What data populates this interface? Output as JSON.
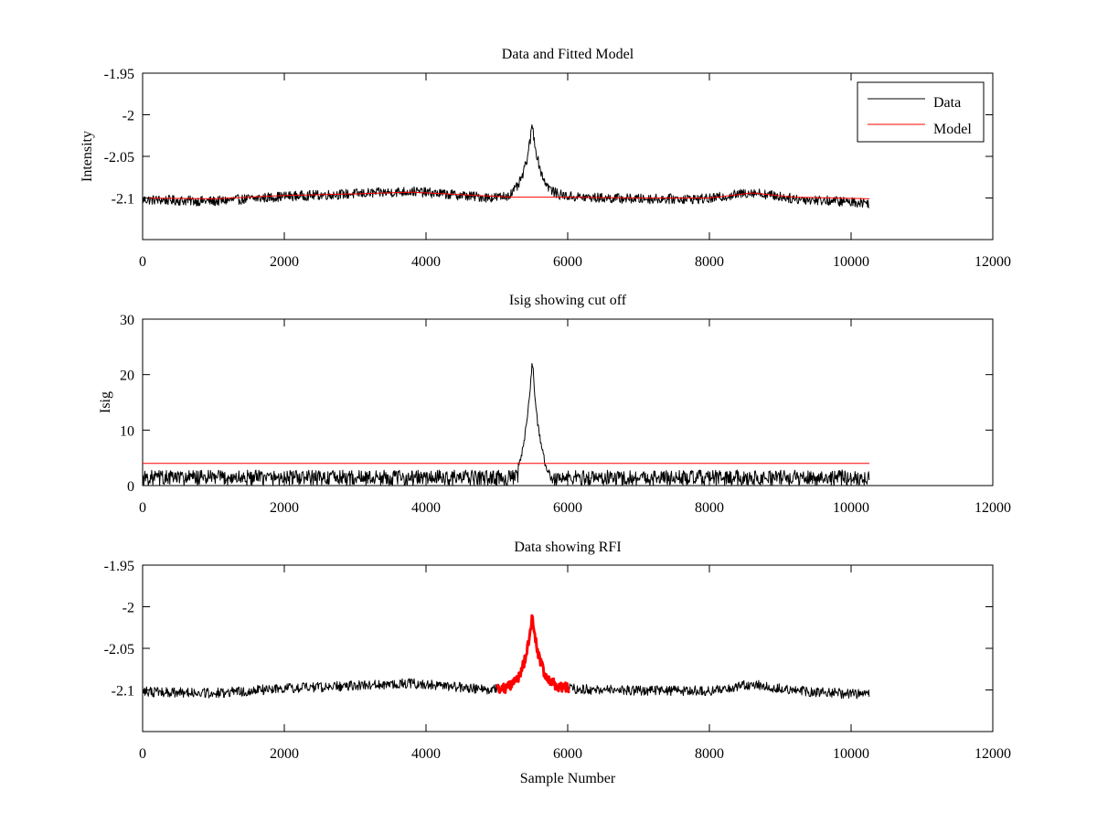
{
  "chart_data": [
    {
      "type": "line",
      "title": "Data and Fitted Model",
      "xlabel": "",
      "ylabel": "Intensity",
      "xlim": [
        0,
        12000
      ],
      "ylim": [
        -2.15,
        -1.95
      ],
      "xticks": [
        0,
        2000,
        4000,
        6000,
        8000,
        10000,
        12000
      ],
      "xtick_labels": [
        "0",
        "2000",
        "4000",
        "6000",
        "8000",
        "10000",
        "12000"
      ],
      "yticks": [
        -1.95,
        -2.0,
        -2.05,
        -2.1
      ],
      "ytick_labels": [
        "-1.95",
        "-2",
        "-2.05",
        "-2.1"
      ],
      "legend_position": "top-right",
      "series": [
        {
          "name": "Data",
          "color": "#000000",
          "kind": "noisy",
          "x_range": [
            0,
            10260
          ],
          "noise": 0.006,
          "baseline": [
            [
              0,
              -2.102
            ],
            [
              1000,
              -2.104
            ],
            [
              2000,
              -2.098
            ],
            [
              3000,
              -2.095
            ],
            [
              3800,
              -2.092
            ],
            [
              4500,
              -2.097
            ],
            [
              5200,
              -2.102
            ],
            [
              5500,
              -2.101
            ],
            [
              6000,
              -2.099
            ],
            [
              7000,
              -2.101
            ],
            [
              8000,
              -2.101
            ],
            [
              8600,
              -2.093
            ],
            [
              9200,
              -2.101
            ],
            [
              10260,
              -2.106
            ]
          ],
          "peak": {
            "center": 5500,
            "height": 0.09,
            "width": 120
          }
        },
        {
          "name": "Model",
          "color": "#ff0000",
          "kind": "line",
          "points": [
            [
              0,
              -2.1
            ],
            [
              1000,
              -2.101
            ],
            [
              2000,
              -2.097
            ],
            [
              3000,
              -2.095
            ],
            [
              3800,
              -2.093
            ],
            [
              4500,
              -2.096
            ],
            [
              5200,
              -2.099
            ],
            [
              6000,
              -2.099
            ],
            [
              7000,
              -2.1
            ],
            [
              8000,
              -2.1
            ],
            [
              8600,
              -2.094
            ],
            [
              9200,
              -2.099
            ],
            [
              10260,
              -2.101
            ]
          ]
        }
      ]
    },
    {
      "type": "line",
      "title": "Isig showing cut off",
      "xlabel": "",
      "ylabel": "Isig",
      "xlim": [
        0,
        12000
      ],
      "ylim": [
        0,
        30
      ],
      "xticks": [
        0,
        2000,
        4000,
        6000,
        8000,
        10000,
        12000
      ],
      "xtick_labels": [
        "0",
        "2000",
        "4000",
        "6000",
        "8000",
        "10000",
        "12000"
      ],
      "yticks": [
        0,
        10,
        20,
        30
      ],
      "ytick_labels": [
        "0",
        "10",
        "20",
        "30"
      ],
      "series": [
        {
          "name": "Isig",
          "color": "#000000",
          "kind": "isig",
          "x_range": [
            0,
            10260
          ],
          "noise_max": 2.8,
          "peak": {
            "center": 5500,
            "height": 24,
            "width": 120,
            "zero_window": [
              5300,
              5800
            ]
          }
        },
        {
          "name": "Cut off",
          "color": "#ff0000",
          "kind": "line",
          "points": [
            [
              0,
              4
            ],
            [
              10260,
              4
            ]
          ]
        }
      ]
    },
    {
      "type": "line",
      "title": "Data showing RFI",
      "xlabel": "Sample Number",
      "ylabel": "",
      "xlim": [
        0,
        12000
      ],
      "ylim": [
        -2.15,
        -1.95
      ],
      "xticks": [
        0,
        2000,
        4000,
        6000,
        8000,
        10000,
        12000
      ],
      "xtick_labels": [
        "0",
        "2000",
        "4000",
        "6000",
        "8000",
        "10000",
        "12000"
      ],
      "yticks": [
        -1.95,
        -2.0,
        -2.05,
        -2.1
      ],
      "ytick_labels": [
        "-1.95",
        "-2",
        "-2.05",
        "-2.1"
      ],
      "series": [
        {
          "name": "Data",
          "color": "#000000",
          "kind": "noisy",
          "x_range": [
            0,
            10260
          ],
          "noise": 0.006,
          "baseline": [
            [
              0,
              -2.102
            ],
            [
              1000,
              -2.104
            ],
            [
              2000,
              -2.098
            ],
            [
              3000,
              -2.095
            ],
            [
              3800,
              -2.092
            ],
            [
              4500,
              -2.097
            ],
            [
              5200,
              -2.102
            ],
            [
              5500,
              -2.101
            ],
            [
              6000,
              -2.099
            ],
            [
              7000,
              -2.101
            ],
            [
              8000,
              -2.101
            ],
            [
              8600,
              -2.093
            ],
            [
              9200,
              -2.101
            ],
            [
              10260,
              -2.106
            ]
          ],
          "peak": {
            "center": 5500,
            "height": 0.09,
            "width": 120
          }
        },
        {
          "name": "RFI",
          "color": "#ff0000",
          "kind": "highlight",
          "x_range": [
            5000,
            6020
          ]
        }
      ]
    }
  ]
}
